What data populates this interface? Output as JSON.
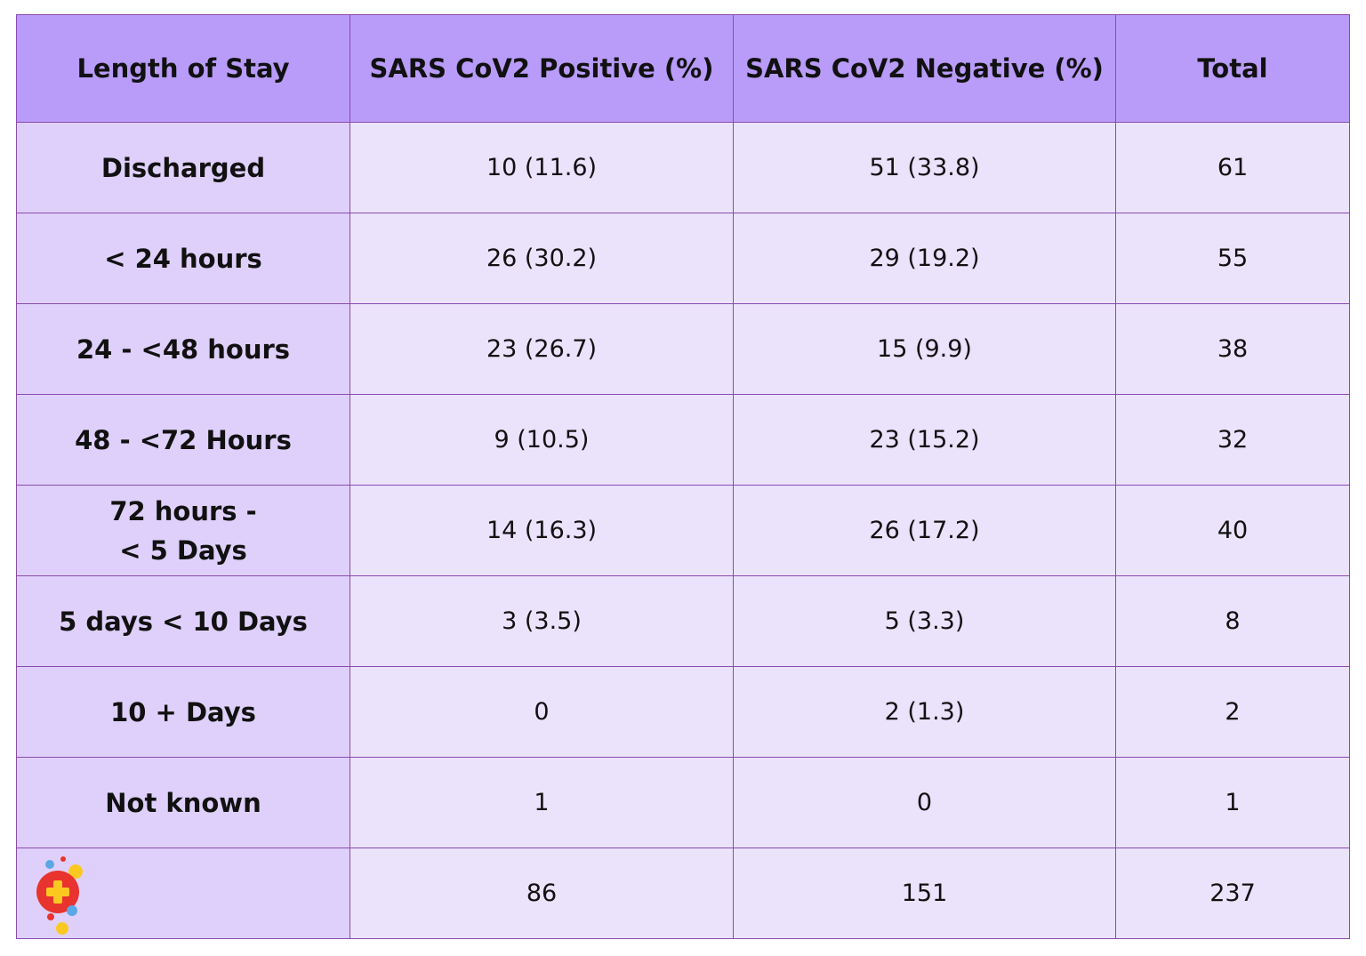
{
  "colors": {
    "header_bg": "#b99bfa",
    "label_bg": "#dfd0fb",
    "cell_bg": "#ebe2fc",
    "border": "#8a4bb0",
    "logo_red": "#e8332e",
    "logo_yellow": "#f9c922",
    "logo_blue": "#5aa8e6"
  },
  "table": {
    "headers": [
      "Length of Stay",
      "SARS CoV2 Positive (%)",
      "SARS CoV2 Negative (%)",
      "Total"
    ],
    "rows": [
      {
        "label": [
          "Discharged"
        ],
        "positive": "10 (11.6)",
        "negative": "51 (33.8)",
        "total": "61"
      },
      {
        "label": [
          "< 24 hours"
        ],
        "positive": "26 (30.2)",
        "negative": "29 (19.2)",
        "total": "55"
      },
      {
        "label": [
          "24 - <48 hours"
        ],
        "positive": "23 (26.7)",
        "negative": "15 (9.9)",
        "total": "38"
      },
      {
        "label": [
          "48 - <72 Hours"
        ],
        "positive": "9 (10.5)",
        "negative": "23 (15.2)",
        "total": "32"
      },
      {
        "label": [
          "72 hours -",
          "< 5 Days"
        ],
        "positive": "14 (16.3)",
        "negative": "26 (17.2)",
        "total": "40"
      },
      {
        "label": [
          "5 days < 10 Days"
        ],
        "positive": "3 (3.5)",
        "negative": "5 (3.3)",
        "total": "8"
      },
      {
        "label": [
          "10 + Days"
        ],
        "positive": "0",
        "negative": "2 (1.3)",
        "total": "2"
      },
      {
        "label": [
          "Not known"
        ],
        "positive": "1",
        "negative": "0",
        "total": "1"
      }
    ],
    "totals": {
      "positive": "86",
      "negative": "151",
      "total": "237"
    },
    "logo_icon": "medical-cross-logo-icon"
  }
}
